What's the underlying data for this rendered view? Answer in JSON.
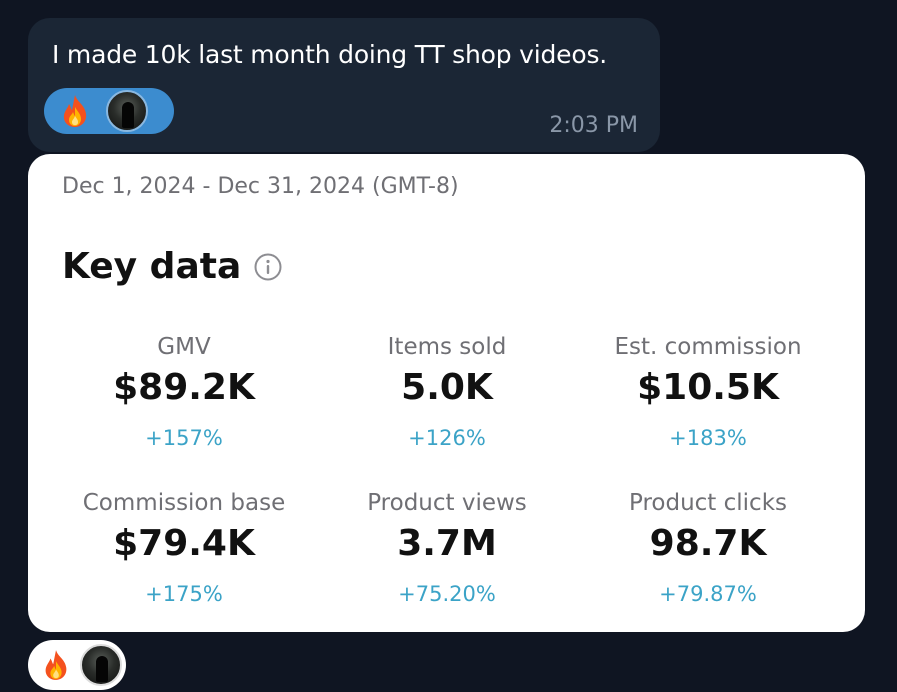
{
  "message": {
    "text": "I made 10k last month doing TT shop videos.",
    "time": "2:03 PM",
    "reactions": [
      {
        "icon": "fire-emoji"
      },
      {
        "icon": "user-avatar"
      }
    ]
  },
  "card": {
    "date_range": "Dec 1, 2024 - Dec 31, 2024 (GMT-8)",
    "title": "Key data",
    "metrics": [
      {
        "label": "GMV",
        "value": "$89.2K",
        "change": "+157%"
      },
      {
        "label": "Items sold",
        "value": "5.0K",
        "change": "+126%"
      },
      {
        "label": "Est. commission",
        "value": "$10.5K",
        "change": "+183%"
      },
      {
        "label": "Commission base",
        "value": "$79.4K",
        "change": "+175%"
      },
      {
        "label": "Product views",
        "value": "3.7M",
        "change": "+75.20%"
      },
      {
        "label": "Product clicks",
        "value": "98.7K",
        "change": "+79.87%"
      }
    ]
  },
  "bottom_reactions": [
    {
      "icon": "fire-emoji"
    },
    {
      "icon": "user-avatar"
    }
  ],
  "colors": {
    "background": "#0f1522",
    "bubble": "#1b2635",
    "reaction_pill": "#3c8ccf",
    "change_positive": "#3ba3c7"
  }
}
